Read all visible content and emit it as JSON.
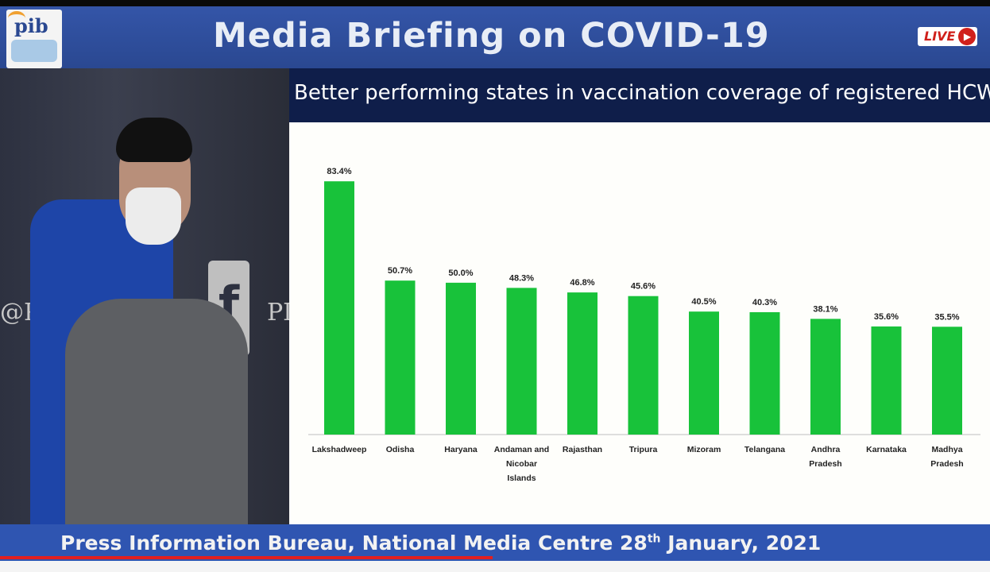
{
  "header": {
    "title": "Media Briefing on COVID-19",
    "logo_text": "pib",
    "live_label": "LIVE"
  },
  "video": {
    "bg_left_text": "@PII",
    "bg_right_text": "PI",
    "fb_glyph": "f"
  },
  "slide": {
    "title": "Better performing states in vaccination coverage of registered HCWs"
  },
  "footer": {
    "prefix": "Press Information Bureau, National Media Centre  28",
    "sup": "th",
    "suffix": " January, 2021"
  },
  "colors": {
    "bar": "#18c23a",
    "header": "#2f52a6",
    "slide_head": "#0f1e4a"
  },
  "chart_data": {
    "type": "bar",
    "title": "Better performing states in vaccination coverage of registered HCWs",
    "categories": [
      "Lakshadweep",
      "Odisha",
      "Haryana",
      "Andaman and Nicobar Islands",
      "Rajasthan",
      "Tripura",
      "Mizoram",
      "Telangana",
      "Andhra Pradesh",
      "Karnataka",
      "Madhya Pradesh"
    ],
    "category_lines": [
      [
        "Lakshadweep"
      ],
      [
        "Odisha"
      ],
      [
        "Haryana"
      ],
      [
        "Andaman and",
        "Nicobar",
        "Islands"
      ],
      [
        "Rajasthan"
      ],
      [
        "Tripura"
      ],
      [
        "Mizoram"
      ],
      [
        "Telangana"
      ],
      [
        "Andhra",
        "Pradesh"
      ],
      [
        "Karnataka"
      ],
      [
        "Madhya",
        "Pradesh"
      ]
    ],
    "values": [
      83.4,
      50.7,
      50.0,
      48.3,
      46.8,
      45.6,
      40.5,
      40.3,
      38.1,
      35.6,
      35.5
    ],
    "value_labels": [
      "83.4%",
      "50.7%",
      "50.0%",
      "48.3%",
      "46.8%",
      "45.6%",
      "40.5%",
      "40.3%",
      "38.1%",
      "35.6%",
      "35.5%"
    ],
    "ylim": [
      0,
      100
    ],
    "grid": false,
    "legend": "none"
  }
}
